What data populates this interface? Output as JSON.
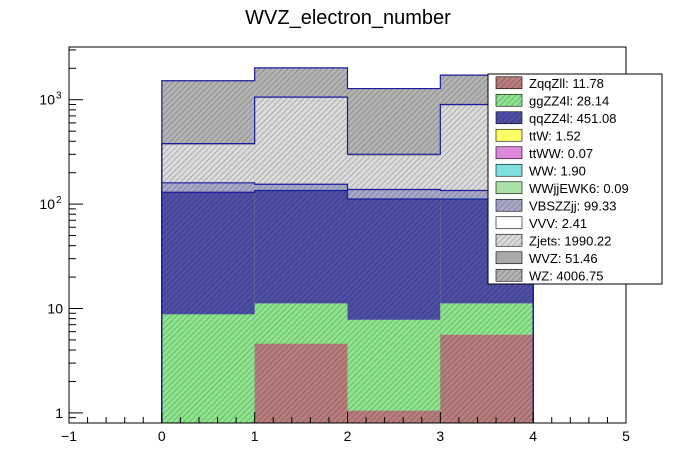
{
  "chart_data": {
    "type": "bar",
    "title": "WVZ_electron_number",
    "xlabel": "",
    "ylabel": "",
    "xlim": [
      -1,
      5
    ],
    "ylim": [
      0.8,
      3200
    ],
    "yscale": "log",
    "grid": false,
    "legend_position": "top-right",
    "x_tick_labels": [
      "−1",
      "0",
      "1",
      "2",
      "3",
      "4",
      "5"
    ],
    "y_tick_labels": [
      {
        "value": 1,
        "label": "1"
      },
      {
        "value": 10,
        "label": "10"
      },
      {
        "value": 100,
        "label": "10",
        "exp": "2"
      },
      {
        "value": 1000,
        "label": "10",
        "exp": "3"
      }
    ],
    "bin_edges": [
      0,
      1,
      2,
      3,
      4
    ],
    "stack_cumulative": [
      {
        "name": "ZqqZll",
        "color": "#b97e7e",
        "hatch": true,
        "values": [
          0,
          4.6,
          1.05,
          5.6
        ]
      },
      {
        "name": "ggZZ4l",
        "color": "#8ee68e",
        "hatch": true,
        "values": [
          8.8,
          11.2,
          7.8,
          11.2
        ]
      },
      {
        "name": "qqZZ4l",
        "color": "#4f4fa8",
        "hatch": true,
        "values": [
          130,
          135,
          112,
          112
        ]
      },
      {
        "name": "ttW",
        "color": "#ffff66",
        "hatch": false,
        "values": [
          131,
          136,
          112.5,
          113
        ]
      },
      {
        "name": "ttWW",
        "color": "#dd88dd",
        "hatch": false,
        "values": [
          131,
          136,
          112.5,
          113
        ]
      },
      {
        "name": "WW",
        "color": "#7fe0e0",
        "hatch": false,
        "values": [
          132,
          137,
          113,
          114
        ]
      },
      {
        "name": "WWjjEWK6",
        "color": "#a8e0a8",
        "hatch": false,
        "values": [
          132,
          137,
          113,
          114
        ]
      },
      {
        "name": "VBSZZjj",
        "color": "#a9a9c9",
        "hatch": true,
        "values": [
          160,
          155,
          138,
          135
        ]
      },
      {
        "name": "VVV",
        "color": "#ffffff",
        "hatch": false,
        "values": [
          161,
          156,
          139,
          136
        ]
      },
      {
        "name": "Zjets",
        "color": "#dcdcdc",
        "hatch": true,
        "values": [
          370,
          1050,
          290,
          880
        ]
      },
      {
        "name": "WVZ",
        "color": "#a9a9a9",
        "hatch": false,
        "values": [
          380,
          1060,
          300,
          900
        ]
      },
      {
        "name": "WZ",
        "color": "#b4b4b4",
        "hatch": true,
        "values": [
          1520,
          2020,
          1280,
          1720
        ]
      }
    ],
    "legend": [
      {
        "label": "ZqqZll: 11.78",
        "color": "#b97e7e",
        "hatch": true
      },
      {
        "label": "ggZZ4l: 28.14",
        "color": "#8ee68e",
        "hatch": true
      },
      {
        "label": "qqZZ4l: 451.08",
        "color": "#4f4fa8",
        "hatch": true
      },
      {
        "label": "ttW: 1.52",
        "color": "#ffff66",
        "hatch": false
      },
      {
        "label": "ttWW: 0.07",
        "color": "#dd88dd",
        "hatch": false
      },
      {
        "label": "WW: 1.90",
        "color": "#7fe0e0",
        "hatch": false
      },
      {
        "label": "WWjjEWK6: 0.09",
        "color": "#a8e0a8",
        "hatch": false
      },
      {
        "label": "VBSZZjj: 99.33",
        "color": "#a9a9c9",
        "hatch": true
      },
      {
        "label": "VVV: 2.41",
        "color": "#ffffff",
        "hatch": false
      },
      {
        "label": "Zjets: 1990.22",
        "color": "#dcdcdc",
        "hatch": true
      },
      {
        "label": "WVZ: 51.46",
        "color": "#a9a9a9",
        "hatch": false
      },
      {
        "label": "WZ: 4006.75",
        "color": "#b4b4b4",
        "hatch": true
      }
    ]
  }
}
